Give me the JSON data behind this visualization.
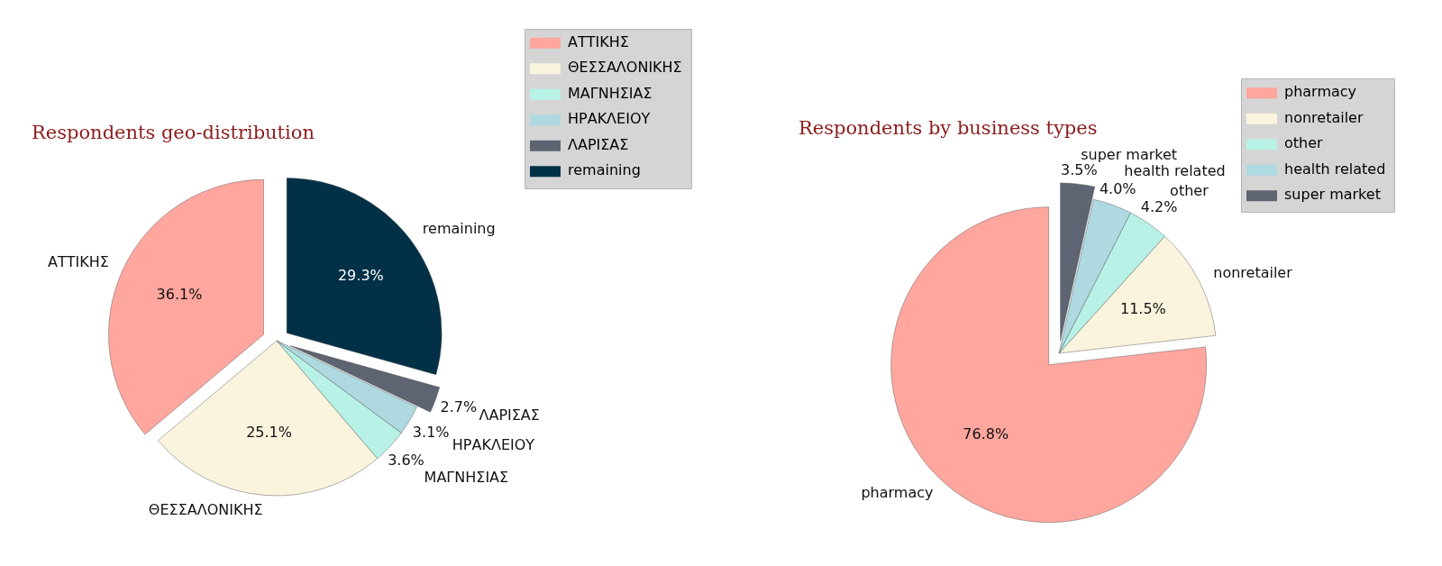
{
  "chart_data": [
    {
      "type": "pie",
      "title": "Respondents geo-distribution",
      "categories": [
        "ΑΤΤΙΚΗΣ",
        "ΘΕΣΣΑΛΟΝΙΚΗΣ",
        "ΜΑΓΝΗΣΙΑΣ",
        "ΗΡΑΚΛΕΙΟΥ",
        "ΛΑΡΙΣΑΣ",
        "remaining"
      ],
      "values": [
        36.1,
        25.1,
        3.6,
        3.1,
        2.7,
        29.3
      ],
      "value_labels": [
        "36.1%",
        "25.1%",
        "3.6%",
        "3.1%",
        "2.7%",
        "29.3%"
      ],
      "colors": [
        "#ffa69e",
        "#faf3dd",
        "#b8f2e6",
        "#aed9e0",
        "#5e6472",
        "#023047"
      ],
      "legend": "top right"
    },
    {
      "type": "pie",
      "title": "Respondents by business types",
      "categories": [
        "pharmacy",
        "nonretailer",
        "other",
        "health related",
        "super market"
      ],
      "values": [
        76.8,
        11.5,
        4.2,
        4.0,
        3.5
      ],
      "value_labels": [
        "76.8%",
        "11.5%",
        "4.2%",
        "4.0%",
        "3.5%"
      ],
      "colors": [
        "#ffa69e",
        "#faf3dd",
        "#b8f2e6",
        "#aed9e0",
        "#5e6472"
      ],
      "legend": "top right"
    }
  ]
}
